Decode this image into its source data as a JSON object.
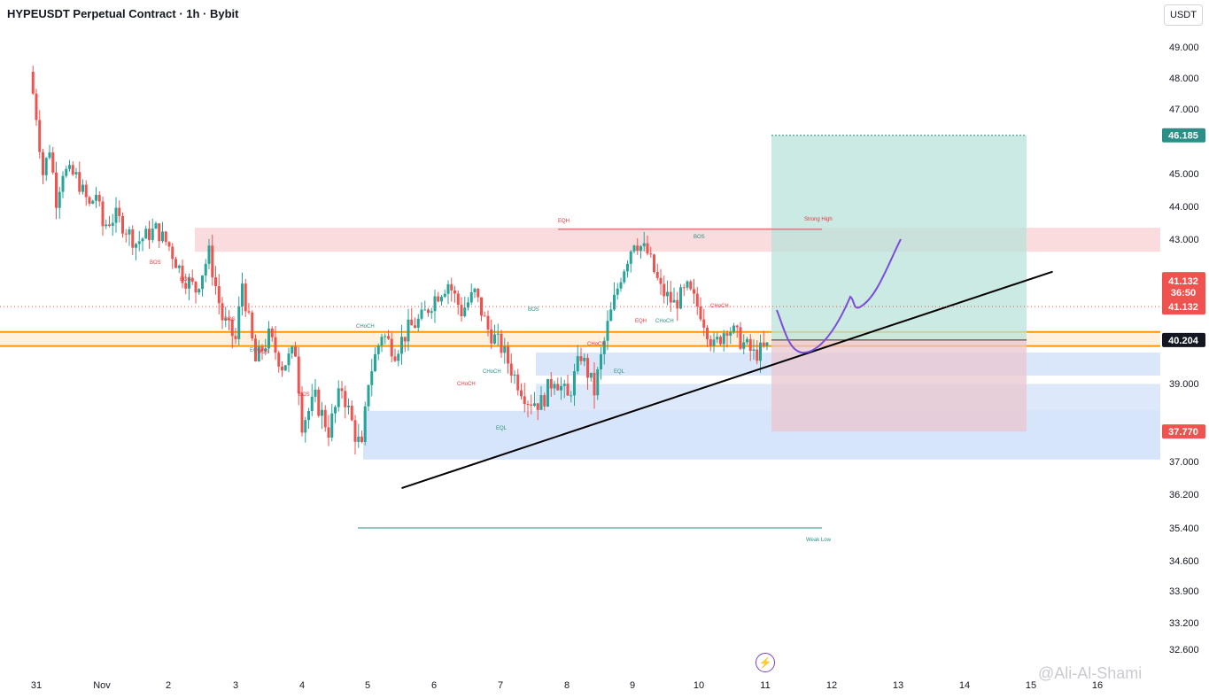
{
  "header": {
    "title": "HYPEUSDT Perpetual Contract · 1h · Bybit",
    "currency": "USDT"
  },
  "watermark": "@Ali-Al-Shami",
  "icons": {
    "bolt": "lightning-bolt-icon"
  },
  "colors": {
    "bull": "#26a69a",
    "bear": "#ef5350",
    "supply": "#f7c9cd",
    "demand": "#bcd3f7",
    "orange": "#ff9800",
    "target": "#b9e3da",
    "stop": "#e9c6cf",
    "draw": "#7c4ddc",
    "bos": "#e0393e",
    "choch": "#2a8f86"
  },
  "chart_data": {
    "type": "candlestick",
    "title": "HYPEUSDT Perpetual Contract · 1h · Bybit",
    "y_axis": {
      "ticks": [
        "49.000",
        "48.000",
        "47.000",
        "45.000",
        "44.000",
        "43.000",
        "39.000",
        "37.000",
        "36.200",
        "35.400",
        "34.600",
        "33.900",
        "33.200",
        "32.600"
      ],
      "ylim": [
        32.0,
        49.6
      ]
    },
    "x_axis": {
      "ticks": [
        "31",
        "Nov",
        "2",
        "3",
        "4",
        "5",
        "6",
        "7",
        "8",
        "9",
        "10",
        "11",
        "12",
        "13",
        "14",
        "15",
        "16"
      ]
    },
    "price_path": [
      [
        30.9,
        48.2
      ],
      [
        31.0,
        46.8
      ],
      [
        31.1,
        45.0
      ],
      [
        31.2,
        45.8
      ],
      [
        31.3,
        44.2
      ],
      [
        31.4,
        45.1
      ],
      [
        31.6,
        44.9
      ],
      [
        31.8,
        44.0
      ],
      [
        31.9,
        44.4
      ],
      [
        32.0,
        43.4
      ],
      [
        32.2,
        43.7
      ],
      [
        32.5,
        42.9
      ],
      [
        32.8,
        43.3
      ],
      [
        33.0,
        42.8
      ],
      [
        33.2,
        42.0
      ],
      [
        33.4,
        41.6
      ],
      [
        33.6,
        42.6
      ],
      [
        33.8,
        40.8
      ],
      [
        34.0,
        40.2
      ],
      [
        34.1,
        41.8
      ],
      [
        34.3,
        39.6
      ],
      [
        34.5,
        40.3
      ],
      [
        34.7,
        39.5
      ],
      [
        34.9,
        39.9
      ],
      [
        35.0,
        38.0
      ],
      [
        35.2,
        38.6
      ],
      [
        35.4,
        37.8
      ],
      [
        35.6,
        38.9
      ],
      [
        35.8,
        37.7
      ],
      [
        35.9,
        37.3
      ],
      [
        36.0,
        39.1
      ],
      [
        36.2,
        40.4
      ],
      [
        36.4,
        39.9
      ],
      [
        36.6,
        40.5
      ],
      [
        36.8,
        40.8
      ],
      [
        37.0,
        41.4
      ],
      [
        37.2,
        41.8
      ],
      [
        37.4,
        41.0
      ],
      [
        37.6,
        41.5
      ],
      [
        37.8,
        40.5
      ],
      [
        38.0,
        40.0
      ],
      [
        38.2,
        39.2
      ],
      [
        38.4,
        38.6
      ],
      [
        38.6,
        38.5
      ],
      [
        38.8,
        39.2
      ],
      [
        39.0,
        38.6
      ],
      [
        39.2,
        39.8
      ],
      [
        39.4,
        38.8
      ],
      [
        39.6,
        40.6
      ],
      [
        39.8,
        42.0
      ],
      [
        40.0,
        43.0
      ],
      [
        40.2,
        42.6
      ],
      [
        40.4,
        41.6
      ],
      [
        40.6,
        41.2
      ],
      [
        40.8,
        41.6
      ],
      [
        41.0,
        41.0
      ],
      [
        41.2,
        40.0
      ],
      [
        41.4,
        40.6
      ],
      [
        41.6,
        40.2
      ],
      [
        41.8,
        39.8
      ],
      [
        42.0,
        40.0
      ],
      [
        42.2,
        40.9
      ],
      [
        42.4,
        42.3
      ],
      [
        42.6,
        42.7
      ],
      [
        42.8,
        41.9
      ],
      [
        43.0,
        42.9
      ],
      [
        43.2,
        42.5
      ],
      [
        43.4,
        41.6
      ],
      [
        43.6,
        42.3
      ],
      [
        43.8,
        41.0
      ],
      [
        44.0,
        41.4
      ],
      [
        44.2,
        41.2
      ],
      [
        44.4,
        40.9
      ]
    ],
    "levels": {
      "last_price": "41.132",
      "countdown": "36:50",
      "entry": "40.204",
      "target": "46.185",
      "stop": "37.770"
    },
    "annotations": {
      "strong_high": "Strong High",
      "weak_low": "Weak Low",
      "eqh": "EQH",
      "eql": "EQL",
      "bos": "BOS",
      "choch": "CHoCH"
    },
    "zones": {
      "supply": [
        42.65,
        43.35
      ],
      "orange_band": [
        40.04,
        40.43
      ],
      "demand_upper": [
        39.22,
        39.86
      ],
      "demand_mid": [
        38.29,
        38.99
      ],
      "demand_lower": [
        37.05,
        38.3
      ]
    },
    "trendline": [
      [
        36.5,
        36.35
      ],
      [
        46.3,
        42.1
      ]
    ]
  }
}
